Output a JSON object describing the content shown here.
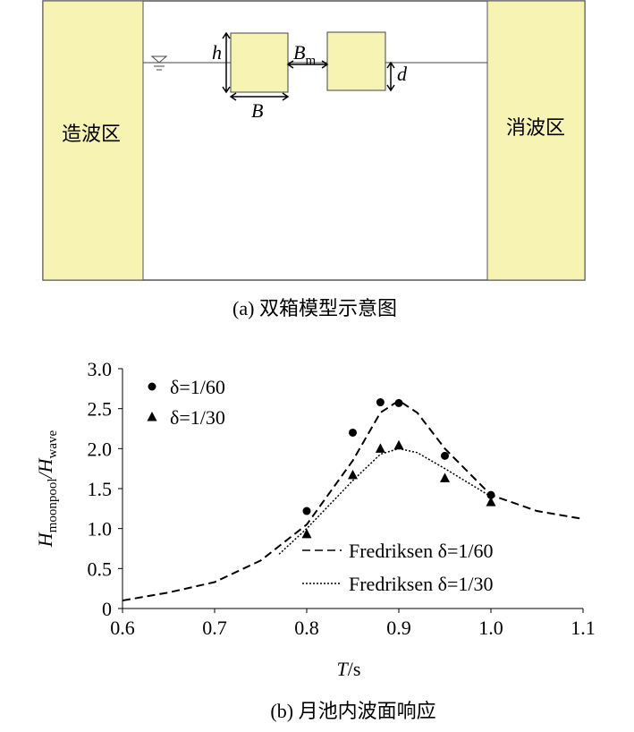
{
  "diagram": {
    "left_zone": "造波区",
    "right_zone": "消波区",
    "h": "h",
    "B": "B",
    "Bm": [
      "B",
      "m"
    ],
    "d": "d",
    "caption": "(a) 双箱模型示意图"
  },
  "chart_data": {
    "type": "line",
    "xlabel": [
      "T",
      "/s"
    ],
    "ylabel": [
      "H",
      "moonpool",
      "/H",
      "wave"
    ],
    "caption": "(b) 月池内波面响应",
    "xlim": [
      0.6,
      1.1
    ],
    "xticks": [
      0.6,
      0.7,
      0.8,
      0.9,
      {
        "value": 1,
        "label": "1.0"
      },
      1.1
    ],
    "ylim": [
      0,
      3
    ],
    "yticks": [
      0,
      0.5,
      {
        "value": 1,
        "label": "1.0"
      },
      1.5,
      {
        "value": 2,
        "label": "2.0"
      },
      2.5,
      {
        "value": 3,
        "label": "3.0"
      }
    ],
    "series": [
      {
        "name": "δ=1/60",
        "color": "#000000",
        "marker": "circle",
        "x": [
          0.8,
          0.85,
          0.88,
          0.9,
          0.95,
          1.0
        ],
        "values": [
          1.22,
          2.2,
          2.58,
          2.57,
          1.91,
          1.42
        ]
      },
      {
        "name": "δ=1/30",
        "color": "#000000",
        "marker": "triangle",
        "x": [
          0.8,
          0.85,
          0.88,
          0.9,
          0.95,
          1.0
        ],
        "values": [
          0.93,
          1.67,
          2.0,
          2.04,
          1.63,
          1.33
        ]
      },
      {
        "name": "Fredriksen δ=1/60",
        "color": "#000000",
        "line": "dashed",
        "x": [
          0.6,
          0.65,
          0.7,
          0.75,
          0.8,
          0.85,
          0.88,
          0.9,
          0.92,
          0.95,
          1.0,
          1.05,
          1.1
        ],
        "values": [
          0.1,
          0.2,
          0.33,
          0.6,
          1.05,
          1.85,
          2.45,
          2.6,
          2.45,
          2.0,
          1.42,
          1.22,
          1.12
        ]
      },
      {
        "name": "Fredriksen δ=1/30",
        "color": "#000000",
        "line": "dotted",
        "x": [
          0.77,
          0.8,
          0.85,
          0.88,
          0.9,
          0.92,
          0.95,
          1.0
        ],
        "values": [
          0.68,
          1.0,
          1.6,
          1.93,
          2.0,
          1.95,
          1.75,
          1.4
        ]
      }
    ]
  }
}
